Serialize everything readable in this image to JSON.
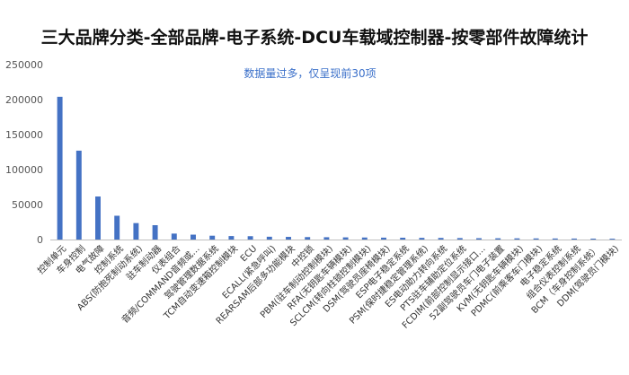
{
  "chart_data": {
    "type": "bar",
    "title": "三大品牌分类-全部品牌-电子系统-DCU车载域控制器-按零部件故障统计",
    "annotation": "数据量过多，仅呈现前30项",
    "xlabel": "",
    "ylabel": "",
    "ylim": [
      0,
      250000
    ],
    "yticks": [
      0,
      50000,
      100000,
      150000,
      200000,
      250000
    ],
    "grid": false,
    "legend": "none",
    "bar_color": "#4472c4",
    "categories": [
      "控制单元",
      "车身控制",
      "电气故障",
      "控制系统",
      "ABS(防抱死制动系统)",
      "驻车制动器",
      "仪表组合",
      "音频/COMMAND音频或…",
      "驾驶管理数据系统",
      "TCM自动变速箱控制模块",
      "ECU",
      "ECALL(紧急呼叫)",
      "REARSAM后部多功能模块",
      "中控锁",
      "PBM(驻车制动控制模块)",
      "RFA(无钥匙车辆模块)",
      "SCLCM(转向柱锁控制模块)",
      "DSM(驾驶员座椅模块)",
      "ESP电子稳定系统",
      "PSM(保时捷稳定管理系统)",
      "ES电动助力转向系统",
      "PTS驻车辅助定位系统",
      "FCDIM(前部控制显示接口…",
      "52副驾驶员车门电子装置",
      "KVM(无钥匙车辆模块)",
      "PDMC(前乘客车门模块)",
      "电子稳定系统",
      "组合仪表控制系统",
      "BCM（车身控制系统）",
      "DDM(驾驶员门模块)"
    ],
    "values": [
      204000,
      127000,
      61500,
      34000,
      23500,
      20500,
      8500,
      7000,
      5500,
      5000,
      4800,
      4000,
      3800,
      3500,
      3300,
      3100,
      2900,
      2700,
      2600,
      2400,
      2300,
      2100,
      1900,
      1800,
      1700,
      1600,
      1500,
      1400,
      1300,
      1200
    ]
  }
}
